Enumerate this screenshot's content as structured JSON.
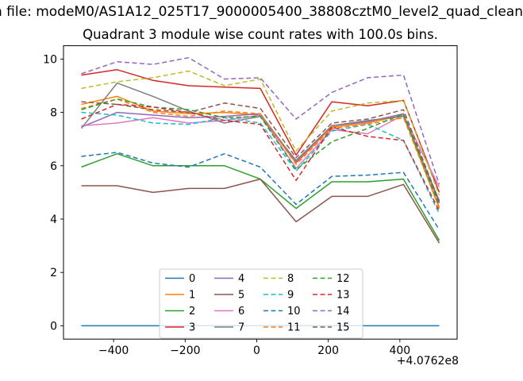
{
  "chart_data": {
    "type": "line",
    "suptitle": "n file: modeM0/AS1A12_025T17_9000005400_38808cztM0_level2_quad_clean",
    "title": "Quadrant 3 module wise count rates with 100.0s bins.",
    "xlabel": "",
    "ylabel": "",
    "x_offset_label": "+4.0762e8",
    "xlim": [
      -540,
      560
    ],
    "ylim": [
      -0.5,
      10.5
    ],
    "xticks": [
      -400,
      -200,
      0,
      200,
      400
    ],
    "xtick_labels": [
      "−400",
      "−200",
      "0",
      "200",
      "400"
    ],
    "yticks": [
      0,
      2,
      4,
      6,
      8,
      10
    ],
    "ytick_labels": [
      "0",
      "2",
      "4",
      "6",
      "8",
      "10"
    ],
    "grid": false,
    "legend_position": "lower center",
    "legend_columns": 4,
    "x": [
      -490,
      -390,
      -290,
      -190,
      -90,
      10,
      110,
      210,
      310,
      410,
      510
    ],
    "series": [
      {
        "name": "0",
        "color": "#1f77b4",
        "style": "solid",
        "values": [
          0,
          0,
          0,
          0,
          0,
          0,
          0,
          0,
          0,
          0,
          0
        ]
      },
      {
        "name": "1",
        "color": "#ff7f0e",
        "style": "solid",
        "values": [
          8.3,
          8.6,
          8.05,
          7.95,
          8.0,
          7.9,
          6.1,
          7.45,
          7.6,
          7.9,
          4.4
        ]
      },
      {
        "name": "2",
        "color": "#2ca02c",
        "style": "solid",
        "values": [
          5.95,
          6.45,
          6.0,
          6.0,
          6.0,
          5.5,
          4.4,
          5.4,
          5.4,
          5.5,
          3.2
        ]
      },
      {
        "name": "3",
        "color": "#d62728",
        "style": "solid",
        "values": [
          9.4,
          9.6,
          9.2,
          9.0,
          8.95,
          8.9,
          6.4,
          8.4,
          8.25,
          8.45,
          5.0
        ]
      },
      {
        "name": "4",
        "color": "#9467bd",
        "style": "solid",
        "values": [
          7.45,
          8.0,
          7.9,
          7.8,
          7.85,
          7.95,
          6.15,
          7.5,
          7.65,
          7.95,
          4.6
        ]
      },
      {
        "name": "5",
        "color": "#8c564b",
        "style": "solid",
        "values": [
          5.25,
          5.25,
          5.0,
          5.15,
          5.15,
          5.5,
          3.9,
          4.85,
          4.85,
          5.3,
          3.1
        ]
      },
      {
        "name": "6",
        "color": "#e377c2",
        "style": "solid",
        "values": [
          7.5,
          7.6,
          7.8,
          7.6,
          7.7,
          7.9,
          5.9,
          7.35,
          7.2,
          7.9,
          5.2
        ]
      },
      {
        "name": "7",
        "color": "#7f7f7f",
        "style": "solid",
        "values": [
          7.4,
          9.1,
          8.6,
          8.05,
          7.6,
          7.85,
          6.2,
          7.5,
          7.7,
          7.85,
          4.7
        ]
      },
      {
        "name": "8",
        "color": "#bcbd22",
        "style": "dashed",
        "values": [
          8.9,
          9.15,
          9.3,
          9.55,
          9.0,
          9.25,
          6.55,
          8.05,
          8.35,
          8.45,
          4.9
        ]
      },
      {
        "name": "9",
        "color": "#17becf",
        "style": "dashed",
        "values": [
          8.0,
          7.9,
          7.6,
          7.55,
          7.8,
          7.6,
          5.8,
          7.3,
          7.55,
          6.95,
          4.2
        ]
      },
      {
        "name": "10",
        "color": "#1f77b4",
        "style": "dashed",
        "values": [
          6.35,
          6.5,
          6.1,
          5.95,
          6.45,
          5.95,
          4.55,
          5.6,
          5.65,
          5.75,
          3.6
        ]
      },
      {
        "name": "11",
        "color": "#ff7f0e",
        "style": "dashed",
        "values": [
          8.15,
          8.5,
          8.0,
          7.85,
          8.05,
          7.95,
          6.05,
          7.4,
          7.55,
          7.8,
          4.45
        ]
      },
      {
        "name": "12",
        "color": "#2ca02c",
        "style": "dashed",
        "values": [
          8.1,
          8.5,
          8.2,
          8.1,
          7.8,
          7.85,
          5.85,
          6.9,
          7.4,
          7.95,
          4.5
        ]
      },
      {
        "name": "13",
        "color": "#d62728",
        "style": "dashed",
        "values": [
          7.75,
          8.3,
          8.2,
          8.0,
          7.7,
          7.55,
          5.45,
          7.45,
          7.1,
          6.95,
          4.3
        ]
      },
      {
        "name": "14",
        "color": "#9467bd",
        "style": "dashed",
        "values": [
          9.45,
          9.9,
          9.8,
          10.05,
          9.25,
          9.3,
          7.75,
          8.75,
          9.3,
          9.4,
          5.3
        ]
      },
      {
        "name": "15",
        "color": "#8c564b",
        "style": "dashed",
        "values": [
          8.4,
          8.3,
          8.1,
          8.0,
          8.35,
          8.15,
          6.3,
          7.6,
          7.75,
          8.1,
          4.65
        ]
      }
    ]
  }
}
